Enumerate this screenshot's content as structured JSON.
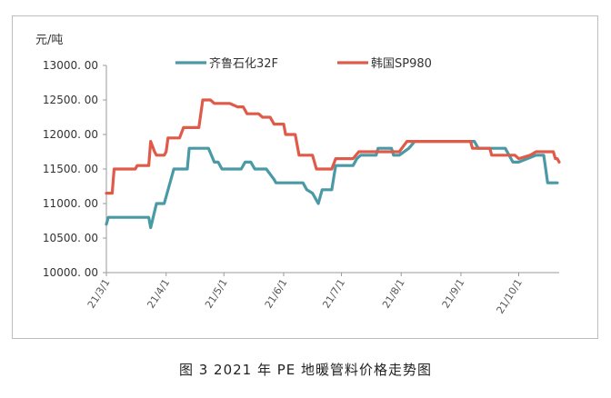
{
  "caption": "图 3 2021 年 PE 地暖管料价格走势图",
  "chart_data": {
    "type": "line",
    "y_unit": "元/吨",
    "ylim": [
      10000,
      13000
    ],
    "y_ticks": [
      "10000. 00",
      "10500. 00",
      "11000. 00",
      "11500. 00",
      "12000. 00",
      "12500. 00",
      "13000. 00"
    ],
    "y_tick_values": [
      10000,
      10500,
      11000,
      11500,
      12000,
      12500,
      13000
    ],
    "x_tick_labels": [
      "21/3/1",
      "21/4/1",
      "21/5/1",
      "21/6/1",
      "21/7/1",
      "21/8/1",
      "21/9/1",
      "21/10/1"
    ],
    "x_tick_dates": [
      "2021-03-01",
      "2021-04-01",
      "2021-05-01",
      "2021-06-01",
      "2021-07-01",
      "2021-08-01",
      "2021-09-01",
      "2021-10-01"
    ],
    "xlim": [
      "2021-03-01",
      "2021-10-22"
    ],
    "grid": false,
    "legend_position": "top",
    "series": [
      {
        "name": "齐鲁石化32F",
        "color": "#4a9aa5",
        "points": [
          [
            "2021-03-01",
            10700
          ],
          [
            "2021-03-02",
            10800
          ],
          [
            "2021-03-23",
            10800
          ],
          [
            "2021-03-24",
            10650
          ],
          [
            "2021-03-27",
            11000
          ],
          [
            "2021-03-31",
            11000
          ],
          [
            "2021-04-05",
            11500
          ],
          [
            "2021-04-12",
            11500
          ],
          [
            "2021-04-13",
            11800
          ],
          [
            "2021-04-23",
            11800
          ],
          [
            "2021-04-26",
            11600
          ],
          [
            "2021-04-28",
            11600
          ],
          [
            "2021-04-30",
            11500
          ],
          [
            "2021-05-10",
            11500
          ],
          [
            "2021-05-12",
            11600
          ],
          [
            "2021-05-15",
            11600
          ],
          [
            "2021-05-17",
            11500
          ],
          [
            "2021-05-23",
            11500
          ],
          [
            "2021-05-27",
            11350
          ],
          [
            "2021-05-28",
            11300
          ],
          [
            "2021-06-11",
            11300
          ],
          [
            "2021-06-13",
            11200
          ],
          [
            "2021-06-16",
            11150
          ],
          [
            "2021-06-19",
            11000
          ],
          [
            "2021-06-21",
            11200
          ],
          [
            "2021-06-26",
            11200
          ],
          [
            "2021-06-28",
            11550
          ],
          [
            "2021-07-07",
            11550
          ],
          [
            "2021-07-09",
            11650
          ],
          [
            "2021-07-11",
            11700
          ],
          [
            "2021-07-19",
            11700
          ],
          [
            "2021-07-20",
            11800
          ],
          [
            "2021-07-27",
            11800
          ],
          [
            "2021-07-28",
            11700
          ],
          [
            "2021-07-31",
            11700
          ],
          [
            "2021-08-05",
            11800
          ],
          [
            "2021-08-08",
            11900
          ],
          [
            "2021-09-08",
            11900
          ],
          [
            "2021-09-10",
            11800
          ],
          [
            "2021-09-24",
            11800
          ],
          [
            "2021-09-28",
            11600
          ],
          [
            "2021-10-01",
            11600
          ],
          [
            "2021-10-10",
            11700
          ],
          [
            "2021-10-14",
            11700
          ],
          [
            "2021-10-15",
            11500
          ],
          [
            "2021-10-16",
            11300
          ],
          [
            "2021-10-21",
            11300
          ]
        ]
      },
      {
        "name": "韩国SP980",
        "color": "#e05a4a",
        "points": [
          [
            "2021-03-01",
            11150
          ],
          [
            "2021-03-04",
            11150
          ],
          [
            "2021-03-05",
            11500
          ],
          [
            "2021-03-16",
            11500
          ],
          [
            "2021-03-17",
            11550
          ],
          [
            "2021-03-23",
            11550
          ],
          [
            "2021-03-24",
            11900
          ],
          [
            "2021-03-26",
            11750
          ],
          [
            "2021-03-27",
            11700
          ],
          [
            "2021-03-31",
            11700
          ],
          [
            "2021-04-01",
            11750
          ],
          [
            "2021-04-02",
            11950
          ],
          [
            "2021-04-08",
            11950
          ],
          [
            "2021-04-10",
            12100
          ],
          [
            "2021-04-18",
            12100
          ],
          [
            "2021-04-20",
            12500
          ],
          [
            "2021-04-24",
            12500
          ],
          [
            "2021-04-26",
            12450
          ],
          [
            "2021-05-04",
            12450
          ],
          [
            "2021-05-08",
            12400
          ],
          [
            "2021-05-11",
            12400
          ],
          [
            "2021-05-13",
            12300
          ],
          [
            "2021-05-19",
            12300
          ],
          [
            "2021-05-21",
            12250
          ],
          [
            "2021-05-25",
            12250
          ],
          [
            "2021-05-27",
            12150
          ],
          [
            "2021-06-01",
            12150
          ],
          [
            "2021-06-02",
            12000
          ],
          [
            "2021-06-07",
            12000
          ],
          [
            "2021-06-09",
            11700
          ],
          [
            "2021-06-16",
            11700
          ],
          [
            "2021-06-18",
            11500
          ],
          [
            "2021-06-26",
            11500
          ],
          [
            "2021-06-28",
            11650
          ],
          [
            "2021-07-07",
            11650
          ],
          [
            "2021-07-10",
            11750
          ],
          [
            "2021-07-31",
            11750
          ],
          [
            "2021-08-04",
            11900
          ],
          [
            "2021-09-06",
            11900
          ],
          [
            "2021-09-07",
            11800
          ],
          [
            "2021-09-16",
            11800
          ],
          [
            "2021-09-17",
            11700
          ],
          [
            "2021-09-29",
            11700
          ],
          [
            "2021-10-01",
            11650
          ],
          [
            "2021-10-07",
            11700
          ],
          [
            "2021-10-10",
            11750
          ],
          [
            "2021-10-19",
            11750
          ],
          [
            "2021-10-20",
            11650
          ],
          [
            "2021-10-21",
            11650
          ],
          [
            "2021-10-22",
            11600
          ]
        ]
      }
    ]
  }
}
